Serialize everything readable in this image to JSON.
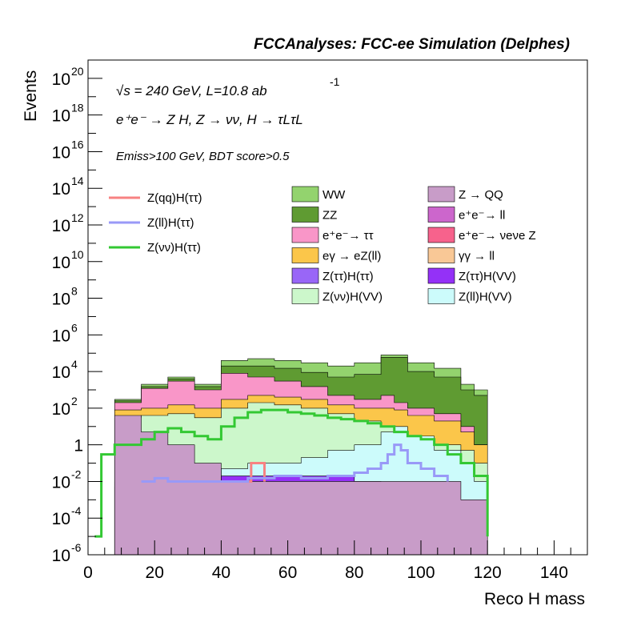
{
  "header": "FCCAnalyses: FCC-ee Simulation (Delphes)",
  "annotations": {
    "energy": "√s = 240 GeV, L=10.8 ab",
    "energy_exp": "-1",
    "process": "e⁺e⁻ → Z H, Z → νν, H → τLτL",
    "cuts": "Emiss>100 GeV, BDT score>0.5"
  },
  "chart_data": {
    "type": "bar",
    "stacked": true,
    "log_y": true,
    "xlabel": "Reco H mass",
    "ylabel": "Events",
    "xlim": [
      0,
      150
    ],
    "ylim": [
      1e-06,
      1e+21
    ],
    "x_ticks": [
      "0",
      "20",
      "40",
      "60",
      "80",
      "100",
      "120",
      "140"
    ],
    "y_ticks": [
      {
        "label": "10",
        "exp": "-6",
        "value": 1e-06
      },
      {
        "label": "10",
        "exp": "-4",
        "value": 0.0001
      },
      {
        "label": "10",
        "exp": "-2",
        "value": 0.01
      },
      {
        "label": "1",
        "exp": "",
        "value": 1
      },
      {
        "label": "10",
        "exp": "2",
        "value": 100
      },
      {
        "label": "10",
        "exp": "4",
        "value": 10000
      },
      {
        "label": "10",
        "exp": "6",
        "value": 1000000.0
      },
      {
        "label": "10",
        "exp": "8",
        "value": 100000000.0
      },
      {
        "label": "10",
        "exp": "10",
        "value": 10000000000.0
      },
      {
        "label": "10",
        "exp": "12",
        "value": 1000000000000.0
      },
      {
        "label": "10",
        "exp": "14",
        "value": 100000000000000.0
      },
      {
        "label": "10",
        "exp": "16",
        "value": 1e+16
      },
      {
        "label": "10",
        "exp": "18",
        "value": 1e+18
      },
      {
        "label": "10",
        "exp": "20",
        "value": 1e+20
      }
    ],
    "stack_layers": [
      {
        "name": "WW",
        "color": "#93d36e",
        "x": [
          8,
          16,
          24,
          32,
          40,
          48,
          56,
          64,
          72,
          80,
          88,
          92,
          96,
          104,
          112,
          116
        ],
        "cum_top": [
          300,
          2000,
          5000,
          2000,
          40000,
          50000,
          40000,
          30000,
          20000,
          30000,
          80000,
          80000,
          30000,
          15000,
          2000,
          1000
        ]
      },
      {
        "name": "ZZ",
        "color": "#5f9b32",
        "x": [
          8,
          16,
          24,
          32,
          40,
          48,
          56,
          64,
          72,
          80,
          88,
          92,
          96,
          104,
          112,
          116
        ],
        "cum_top": [
          250,
          1500,
          4000,
          1500,
          20000,
          20000,
          15000,
          9000,
          5000,
          7000,
          60000,
          60000,
          10000,
          5000,
          1000,
          500
        ]
      },
      {
        "name": "e⁺e⁻→ ττ",
        "color": "#f996c8",
        "x": [
          8,
          16,
          24,
          32,
          40,
          48,
          56,
          64,
          72,
          80,
          88,
          92,
          96,
          104,
          112,
          116
        ],
        "cum_top": [
          200,
          1200,
          3000,
          1000,
          8000,
          5000,
          3000,
          1500,
          500,
          300,
          500,
          200,
          100,
          50,
          10,
          1
        ]
      },
      {
        "name": "eγ → eZ(ll)",
        "color": "#fbc64a",
        "x": [
          8,
          16,
          24,
          32,
          40,
          48,
          56,
          64,
          72,
          80,
          88,
          92,
          96,
          104,
          112,
          116
        ],
        "cum_top": [
          80,
          100,
          150,
          100,
          300,
          500,
          400,
          300,
          150,
          100,
          100,
          80,
          40,
          20,
          5,
          1
        ]
      },
      {
        "name": "Z(νν)H(VV)",
        "color": "#ccf7cb",
        "x": [
          8,
          16,
          24,
          32,
          40,
          48,
          56,
          64,
          72,
          80,
          88,
          92,
          96,
          104,
          112,
          116
        ],
        "cum_top": [
          30,
          40,
          50,
          30,
          100,
          200,
          150,
          100,
          50,
          20,
          10,
          5,
          2,
          1,
          0.5,
          0.1
        ]
      },
      {
        "name": "Z(ll)H(VV)",
        "color": "#ccfbfb",
        "x": [
          8,
          16,
          24,
          32,
          40,
          48,
          56,
          64,
          72,
          80,
          88,
          92,
          96,
          104,
          112,
          116
        ],
        "cum_top": [
          0.01,
          0.02,
          0.02,
          0.01,
          0.05,
          0.1,
          0.1,
          0.2,
          0.5,
          1,
          5,
          10,
          3,
          0.5,
          0.1,
          0.01
        ]
      },
      {
        "name": "Z(ττ)H(VV)",
        "color": "#9431f7",
        "x": [
          8,
          16,
          24,
          32,
          40,
          48,
          56,
          64,
          72,
          80,
          88,
          92,
          96,
          104,
          112,
          116
        ],
        "cum_top": [
          0.005,
          0.01,
          0.01,
          0.005,
          0.02,
          0.02,
          0.02,
          0.02,
          0.02,
          0.01,
          0.005,
          0.005,
          0.001,
          0.001,
          0.0001,
          0.0001
        ]
      },
      {
        "name": "Z → QQ",
        "color": "#c89cc8",
        "x": [
          8,
          16,
          24,
          32,
          40,
          48,
          56,
          64,
          72,
          80,
          88,
          92,
          96,
          104,
          112,
          116
        ],
        "cum_top": [
          40,
          5,
          1,
          0.1,
          0.01,
          0.01,
          0.01,
          0.01,
          0.01,
          0.01,
          0.01,
          0.01,
          0.01,
          0.01,
          0.001,
          0.001
        ]
      }
    ],
    "line_series": [
      {
        "name": "Z(qq)H(ττ)",
        "color": "#f78282",
        "x": [
          48,
          49,
          52,
          53
        ],
        "y": [
          0.01,
          0.1,
          0.1,
          0.01
        ]
      },
      {
        "name": "Z(ll)H(ττ)",
        "color": "#9999f7",
        "x": [
          16,
          20,
          24,
          28,
          40,
          48,
          56,
          64,
          72,
          80,
          84,
          88,
          90,
          92,
          94,
          96,
          100,
          104,
          108
        ],
        "y": [
          0.01,
          0.015,
          0.01,
          0.01,
          0.01,
          0.015,
          0.02,
          0.015,
          0.02,
          0.03,
          0.05,
          0.1,
          0.3,
          1,
          0.5,
          0.1,
          0.05,
          0.02,
          0.01
        ]
      },
      {
        "name": "Z(νν)H(ττ)",
        "color": "#33c833",
        "x": [
          2,
          4,
          8,
          12,
          16,
          20,
          24,
          28,
          32,
          36,
          40,
          44,
          48,
          52,
          56,
          60,
          64,
          68,
          72,
          76,
          80,
          84,
          88,
          92,
          96,
          100,
          104,
          108,
          112,
          116,
          120
        ],
        "y": [
          1e-05,
          0.3,
          1,
          1,
          2,
          5,
          8,
          5,
          3,
          2,
          10,
          30,
          60,
          80,
          80,
          60,
          50,
          40,
          30,
          25,
          20,
          15,
          10,
          5,
          3,
          2,
          1,
          0.3,
          0.1,
          0.02,
          1e-05
        ]
      }
    ],
    "legend": {
      "lines": [
        {
          "label": "Z(qq)H(ττ)",
          "color": "#f78282"
        },
        {
          "label": "Z(ll)H(ττ)",
          "color": "#9999f7"
        },
        {
          "label": "Z(νν)H(ττ)",
          "color": "#33c833"
        }
      ],
      "boxes": [
        {
          "label": "WW",
          "color": "#93d36e"
        },
        {
          "label": "Z → QQ",
          "color": "#c89cc8"
        },
        {
          "label": "ZZ",
          "color": "#5f9b32"
        },
        {
          "label": "e⁺e⁻→ ll",
          "color": "#cc66cc"
        },
        {
          "label": "e⁺e⁻→ ττ",
          "color": "#f996c8"
        },
        {
          "label": "e⁺e⁻→ νeνe Z",
          "color": "#f7628c"
        },
        {
          "label": "eγ → eZ(ll)",
          "color": "#fbc64a"
        },
        {
          "label": "γγ → ll",
          "color": "#f9c896"
        },
        {
          "label": "Z(ττ)H(ττ)",
          "color": "#9966f7"
        },
        {
          "label": "Z(ττ)H(VV)",
          "color": "#9431f7"
        },
        {
          "label": "Z(νν)H(VV)",
          "color": "#ccf7cb"
        },
        {
          "label": "Z(ll)H(VV)",
          "color": "#ccfbfb"
        }
      ]
    }
  }
}
